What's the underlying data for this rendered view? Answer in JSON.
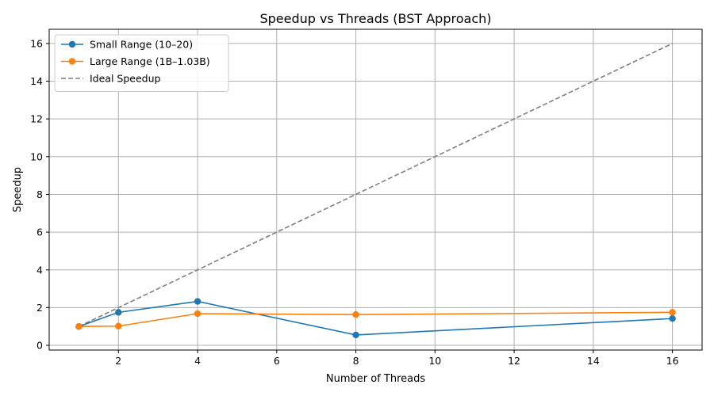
{
  "chart_data": {
    "type": "line",
    "title": "Speedup vs Threads (BST Approach)",
    "xlabel": "Number of Threads",
    "ylabel": "Speedup",
    "xlim": [
      0.25,
      16.75
    ],
    "ylim": [
      -0.25,
      16.75
    ],
    "xticks": [
      2,
      4,
      6,
      8,
      10,
      12,
      14,
      16
    ],
    "yticks": [
      0,
      2,
      4,
      6,
      8,
      10,
      12,
      14,
      16
    ],
    "grid": true,
    "legend_position": "top-left",
    "series": [
      {
        "name": "Small Range (10–20)",
        "color": "#1f77b4",
        "style": "solid",
        "marker": "circle",
        "x": [
          1,
          2,
          4,
          8,
          16
        ],
        "y": [
          1.0,
          1.75,
          2.33,
          0.55,
          1.42
        ]
      },
      {
        "name": "Large Range (1B–1.03B)",
        "color": "#ff7f0e",
        "style": "solid",
        "marker": "circle",
        "x": [
          1,
          2,
          4,
          8,
          16
        ],
        "y": [
          1.0,
          1.02,
          1.68,
          1.63,
          1.75
        ]
      },
      {
        "name": "Ideal Speedup",
        "color": "#7f7f7f",
        "style": "dashed",
        "marker": "none",
        "x": [
          1,
          2,
          4,
          8,
          16
        ],
        "y": [
          1,
          2,
          4,
          8,
          16
        ]
      }
    ]
  }
}
